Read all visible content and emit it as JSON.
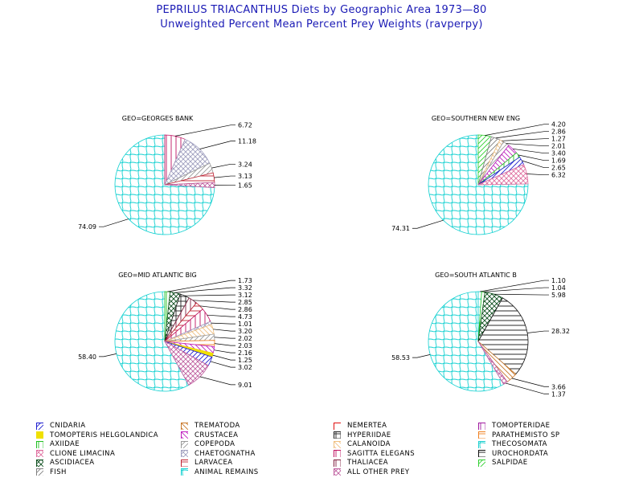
{
  "header": {
    "title": "PEPRILUS TRIACANTHUS Diets by Geographic Area 1973—80",
    "subtitle": "Unweighted Percent Mean Percent Prey  Weights (ravperpy)"
  },
  "colors": {
    "title": "#1a1ab5",
    "CNIDARIA": "#1f1fd0",
    "TREMATODA": "#c8782a",
    "NEMERTEA": "#e01010",
    "TOMOPTERIDAE": "#a01aa0",
    "TOMOPTERIS HELGOLANDICA": "#f0e000",
    "CRUSTACEA": "#c020c0",
    "HYPERIIDAE": "#202020",
    "PARATHEMISTO SP": "#f08020",
    "AXIIDAE": "#20c020",
    "COPEPODA": "#9a9a9a",
    "CALANOIDA": "#f0c080",
    "THECOSOMATA": "#20d0d0",
    "CLIONE LIMACINA": "#e070a0",
    "CHAETOGNATHA": "#a0a0c0",
    "SAGITTA ELEGANS": "#c01060",
    "UROCHORDATA": "#101010",
    "ASCIDIACEA": "#105020",
    "LARVACEA": "#c02030",
    "THALIACEA": "#802040",
    "SALPIDAE": "#30d030",
    "FISH": "#808080",
    "ANIMAL REMAINS": "#10d0d0",
    "ALL OTHER PREY": "#c060a0"
  },
  "legend": [
    "CNIDARIA",
    "TREMATODA",
    "NEMERTEA",
    "TOMOPTERIDAE",
    "TOMOPTERIS HELGOLANDICA",
    "CRUSTACEA",
    "HYPERIIDAE",
    "PARATHEMISTO SP",
    "AXIIDAE",
    "COPEPODA",
    "CALANOIDA",
    "THECOSOMATA",
    "CLIONE LIMACINA",
    "CHAETOGNATHA",
    "SAGITTA ELEGANS",
    "UROCHORDATA",
    "ASCIDIACEA",
    "LARVACEA",
    "THALIACEA",
    "SALPIDAE",
    "FISH",
    "ANIMAL REMAINS",
    "ALL OTHER PREY"
  ],
  "chart_data": [
    {
      "type": "pie",
      "title": "GEO=GEORGES BANK",
      "slices": [
        {
          "category": "ANIMAL REMAINS",
          "value": 74.09
        },
        {
          "category": "SAGITTA ELEGANS",
          "value": 6.72
        },
        {
          "category": "CHAETOGNATHA",
          "value": 11.18
        },
        {
          "category": "COPEPODA",
          "value": 3.24
        },
        {
          "category": "LARVACEA",
          "value": 3.13
        },
        {
          "category": "ALL OTHER PREY",
          "value": 1.65
        }
      ]
    },
    {
      "type": "pie",
      "title": "GEO=SOUTHERN NEW ENG",
      "slices": [
        {
          "category": "ANIMAL REMAINS",
          "value": 74.31
        },
        {
          "category": "SALPIDAE",
          "value": 4.2
        },
        {
          "category": "FISH",
          "value": 2.86
        },
        {
          "category": "CALANOIDA",
          "value": 1.27
        },
        {
          "category": "COPEPODA",
          "value": 2.01
        },
        {
          "category": "CRUSTACEA",
          "value": 3.4
        },
        {
          "category": "AXIIDAE",
          "value": 1.69
        },
        {
          "category": "CNIDARIA",
          "value": 2.65
        },
        {
          "category": "CLIONE LIMACINA",
          "value": 6.32
        }
      ]
    },
    {
      "type": "pie",
      "title": "GEO=MID ATLANTIC BIG",
      "slices": [
        {
          "category": "ANIMAL REMAINS",
          "value": 58.4
        },
        {
          "category": "AXIIDAE",
          "value": 1.73
        },
        {
          "category": "ASCIDIACEA",
          "value": 3.32
        },
        {
          "category": "HYPERIIDAE",
          "value": 3.12
        },
        {
          "category": "THALIACEA",
          "value": 2.85
        },
        {
          "category": "LARVACEA",
          "value": 2.86
        },
        {
          "category": "SAGITTA ELEGANS",
          "value": 4.73
        },
        {
          "category": "CHAETOGNATHA",
          "value": 1.01
        },
        {
          "category": "CALANOIDA",
          "value": 3.2
        },
        {
          "category": "COPEPODA",
          "value": 2.02
        },
        {
          "category": "PARATHEMISTO SP",
          "value": 2.03
        },
        {
          "category": "CRUSTACEA",
          "value": 2.16
        },
        {
          "category": "TOMOPTERIS HELGOLANDICA",
          "value": 1.25
        },
        {
          "category": "CNIDARIA",
          "value": 3.02
        },
        {
          "category": "ALL OTHER PREY",
          "value": 9.01
        }
      ]
    },
    {
      "type": "pie",
      "title": "GEO=SOUTH ATLANTIC B",
      "slices": [
        {
          "category": "ANIMAL REMAINS",
          "value": 58.53
        },
        {
          "category": "THECOSOMATA",
          "value": 1.1
        },
        {
          "category": "AXIIDAE",
          "value": 1.04
        },
        {
          "category": "ASCIDIACEA",
          "value": 5.98
        },
        {
          "category": "UROCHORDATA",
          "value": 28.32
        },
        {
          "category": "TREMATODA",
          "value": 3.66
        },
        {
          "category": "ALL OTHER PREY",
          "value": 1.37
        }
      ]
    }
  ]
}
